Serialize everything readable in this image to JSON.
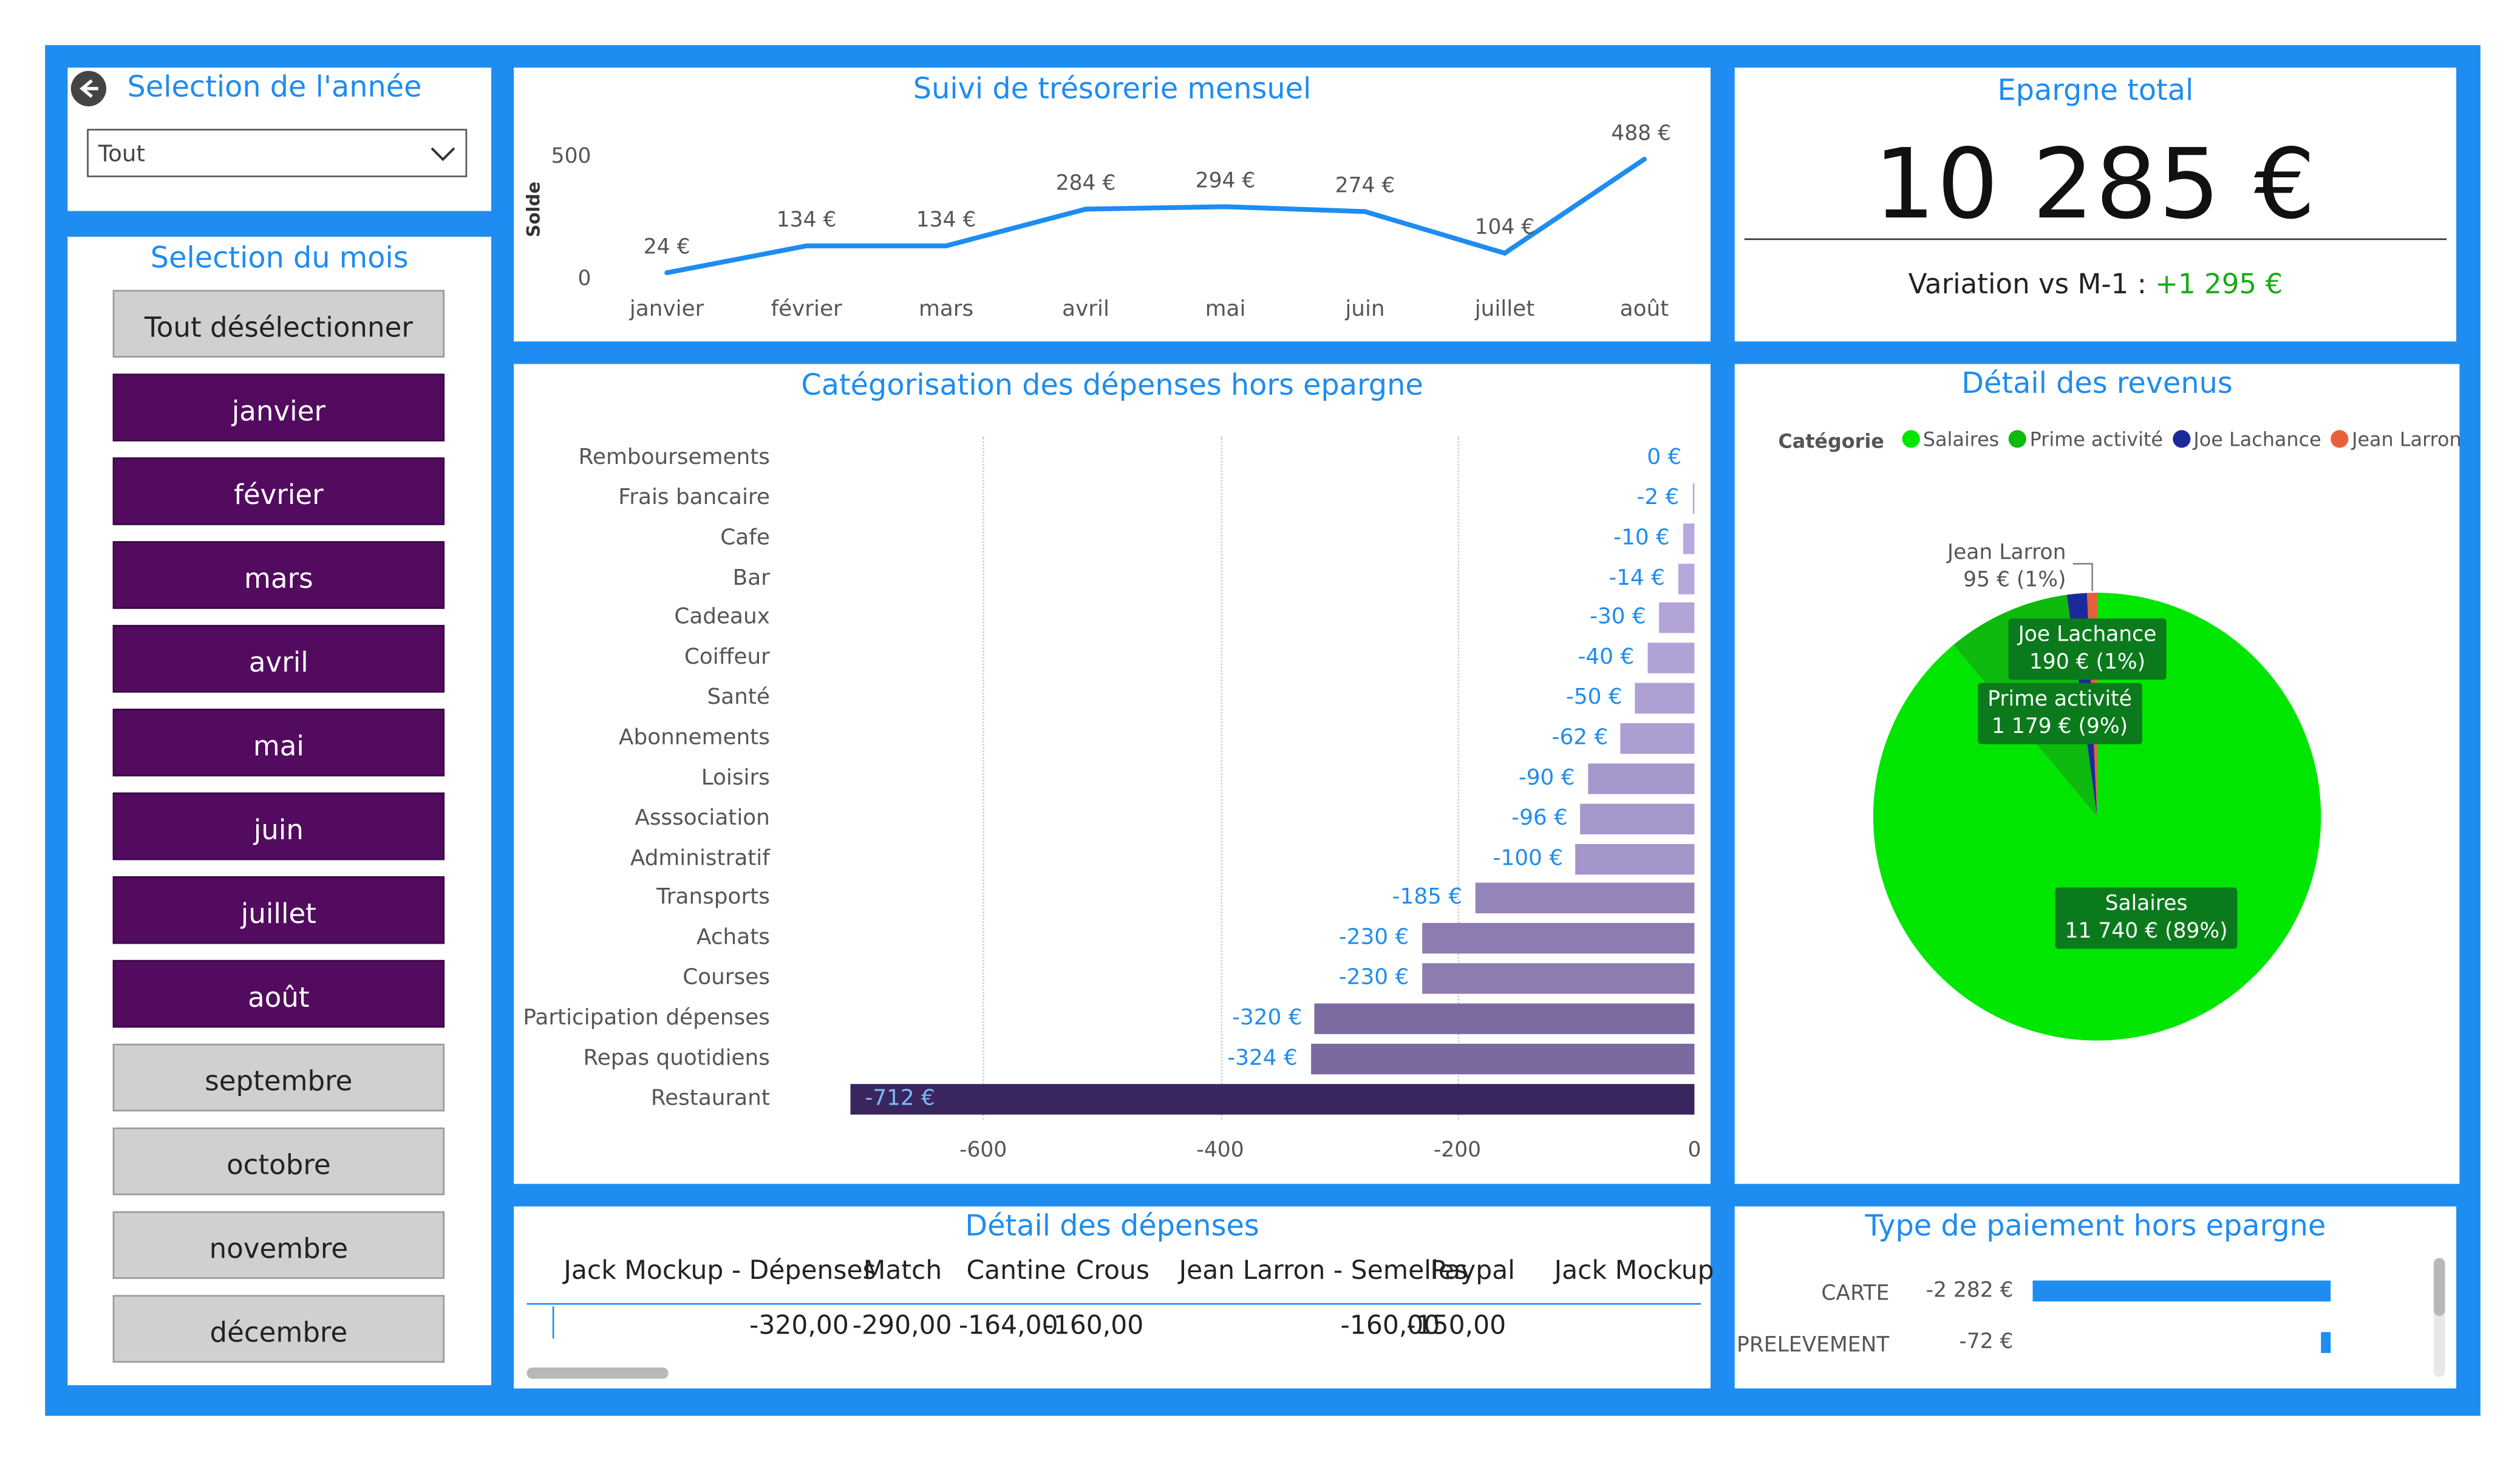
{
  "year_filter": {
    "title": "Selection de l'année",
    "selected": "Tout"
  },
  "month_filter": {
    "title": "Selection du mois",
    "clear_label": "Tout désélectionner",
    "months": [
      {
        "label": "janvier",
        "selected": true
      },
      {
        "label": "février",
        "selected": true
      },
      {
        "label": "mars",
        "selected": true
      },
      {
        "label": "avril",
        "selected": true
      },
      {
        "label": "mai",
        "selected": true
      },
      {
        "label": "juin",
        "selected": true
      },
      {
        "label": "juillet",
        "selected": true
      },
      {
        "label": "août",
        "selected": true
      },
      {
        "label": "septembre",
        "selected": false
      },
      {
        "label": "octobre",
        "selected": false
      },
      {
        "label": "novembre",
        "selected": false
      },
      {
        "label": "décembre",
        "selected": false
      }
    ]
  },
  "treasury": {
    "title": "Suivi de trésorerie mensuel"
  },
  "savings": {
    "title": "Epargne total",
    "value": "10 285 €",
    "variation_label": "Variation vs M-1 :",
    "variation_value": "+1 295 €"
  },
  "expenses_chart": {
    "title": "Catégorisation des dépenses hors epargne"
  },
  "revenue": {
    "title": "Détail des revenus",
    "legend_title": "Catégorie"
  },
  "expense_detail": {
    "title": "Détail des dépenses",
    "columns": [
      {
        "header": "Jack Mockup - Dépenses",
        "value": "-320,00"
      },
      {
        "header": "Match",
        "value": "-290,00"
      },
      {
        "header": "Cantine",
        "value": "-164,00"
      },
      {
        "header": "Crous",
        "value": "-160,00"
      },
      {
        "header": "Jean Larron - Semelles",
        "value": "-160,00"
      },
      {
        "header": "Paypal",
        "value": "-150,00"
      },
      {
        "header": "Jack Mockup",
        "value": ""
      }
    ]
  },
  "payment": {
    "title": "Type de paiement hors epargne"
  },
  "colors": {
    "accent": "#1e8cf0",
    "month_selected": "#520b5e",
    "month_unselected": "#d0d0d0",
    "positive": "#1aaa1a"
  },
  "chart_data": [
    {
      "type": "line",
      "title": "Suivi de trésorerie mensuel",
      "ylabel": "Solde",
      "categories": [
        "janvier",
        "février",
        "mars",
        "avril",
        "mai",
        "juin",
        "juillet",
        "août"
      ],
      "values": [
        24,
        134,
        134,
        284,
        294,
        274,
        104,
        488
      ],
      "data_labels": [
        "24 €",
        "134 €",
        "134 €",
        "284 €",
        "294 €",
        "274 €",
        "104 €",
        "488 €"
      ],
      "yticks": [
        "0",
        "500"
      ],
      "ylim": [
        0,
        500
      ]
    },
    {
      "type": "bar",
      "orientation": "horizontal",
      "title": "Catégorisation des dépenses hors epargne",
      "categories": [
        "Remboursements",
        "Frais bancaire",
        "Cafe",
        "Bar",
        "Cadeaux",
        "Coiffeur",
        "Santé",
        "Abonnements",
        "Loisirs",
        "Asssociation",
        "Administratif",
        "Transports",
        "Achats",
        "Courses",
        "Participation dépenses",
        "Repas quotidiens",
        "Restaurant"
      ],
      "values": [
        0,
        -2,
        -10,
        -14,
        -30,
        -40,
        -50,
        -62,
        -90,
        -96,
        -100,
        -185,
        -230,
        -230,
        -320,
        -324,
        -712
      ],
      "data_labels": [
        "0 €",
        "-2 €",
        "-10 €",
        "-14 €",
        "-30 €",
        "-40 €",
        "-50 €",
        "-62 €",
        "-90 €",
        "-96 €",
        "-100 €",
        "-185 €",
        "-230 €",
        "-230 €",
        "-320 €",
        "-324 €",
        "-712 €"
      ],
      "xticks": [
        "-600",
        "-400",
        "-200",
        "0"
      ],
      "xlim": [
        -720,
        0
      ],
      "grid": true
    },
    {
      "type": "pie",
      "title": "Détail des revenus",
      "legend_title": "Catégorie",
      "legend_position": "top-left",
      "slices": [
        {
          "name": "Salaires",
          "value": 11740,
          "label": "11 740 € (89%)",
          "color": "#00e600"
        },
        {
          "name": "Prime activité",
          "value": 1179,
          "label": "1 179 € (9%)",
          "color": "#0dba0d"
        },
        {
          "name": "Joe Lachance",
          "value": 190,
          "label": "190 € (1%)",
          "color": "#1a2a9a"
        },
        {
          "name": "Jean Larron",
          "value": 95,
          "label": "95 € (1%)",
          "color": "#e8603a"
        }
      ]
    },
    {
      "type": "bar",
      "orientation": "horizontal",
      "title": "Type de paiement hors epargne",
      "categories": [
        "CARTE",
        "PRELEVEMENT"
      ],
      "values": [
        -2282,
        -72
      ],
      "data_labels": [
        "-2 282 €",
        "-72 €"
      ]
    }
  ]
}
